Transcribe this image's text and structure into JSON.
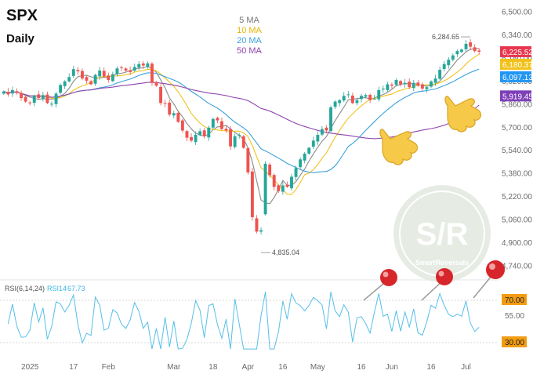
{
  "chart_data": {
    "type": "candlestick",
    "title": "SPX",
    "subtitle": "Daily",
    "price_axis": {
      "ylim": [
        4700,
        6540
      ],
      "ticks": [
        "6,500.00",
        "6,340.00",
        "6,180.00",
        "6,020.00",
        "5,860.00",
        "5,700.00",
        "5,540.00",
        "5,380.00",
        "5,220.00",
        "5,060.00",
        "4,900.00",
        "4,740.00"
      ],
      "tick_values": [
        6500,
        6340,
        6180,
        6020,
        5860,
        5700,
        5540,
        5380,
        5220,
        5060,
        4900,
        4740
      ]
    },
    "time_axis": {
      "labels": [
        "2025",
        "17",
        "Feb",
        "Mar",
        "18",
        "Apr",
        "16",
        "May",
        "16",
        "Jun",
        "16",
        "Jul"
      ],
      "label_bar_index": [
        6,
        16,
        24,
        39,
        48,
        56,
        64,
        72,
        82,
        89,
        98,
        106
      ]
    },
    "legend": [
      {
        "name": "5 MA",
        "color": "#777777"
      },
      {
        "name": "10 MA",
        "color": "#f2c21b"
      },
      {
        "name": "20 MA",
        "color": "#3aa0dc"
      },
      {
        "name": "50 MA",
        "color": "#8e44ad"
      }
    ],
    "annotations": {
      "high": {
        "text": "6,284.65",
        "value": 6284.65,
        "bar": 107
      },
      "low": {
        "text": "4,835.04",
        "value": 4835.04,
        "bar": 59
      }
    },
    "price_labels": [
      {
        "text": "6,225.52",
        "value": 6225.52,
        "color": "#e8364f"
      },
      {
        "text": "6,180.37",
        "value": 6180.37,
        "color": "#f2c21b"
      },
      {
        "text": "6,097.13",
        "value": 6097.13,
        "color": "#2196f3"
      },
      {
        "text": "5,919.45",
        "value": 5919.45,
        "color": "#7e3fb8"
      }
    ],
    "closes": [
      5950,
      5930,
      5960,
      5940,
      5905,
      5880,
      5870,
      5920,
      5905,
      5925,
      5870,
      5865,
      5935,
      5995,
      6020,
      6050,
      6105,
      6090,
      6040,
      6025,
      6000,
      6065,
      6095,
      6055,
      6030,
      6070,
      6110,
      6115,
      6095,
      6085,
      6120,
      6140,
      6130,
      6145,
      6010,
      5990,
      5870,
      5865,
      5790,
      5800,
      5740,
      5680,
      5630,
      5610,
      5650,
      5675,
      5640,
      5700,
      5760,
      5750,
      5690,
      5680,
      5570,
      5640,
      5650,
      5560,
      5390,
      5080,
      4980,
      4990,
      5450,
      5370,
      5290,
      5260,
      5300,
      5290,
      5360,
      5420,
      5480,
      5520,
      5560,
      5610,
      5650,
      5690,
      5680,
      5840,
      5880,
      5890,
      5920,
      5930,
      5870,
      5890,
      5920,
      5925,
      5890,
      5900,
      5960,
      5970,
      6000,
      5990,
      6030,
      6000,
      6010,
      5980,
      6010,
      5990,
      5970,
      5980,
      6020,
      6040,
      6100,
      6140,
      6170,
      6200,
      6230,
      6240,
      6280,
      6260,
      6230,
      6225.52
    ],
    "rsi": {
      "label": "RSI(6,14,24)",
      "series_label": "RSI14",
      "value": "67.73",
      "levels": [
        "70.00",
        "55.00",
        "30.00"
      ],
      "level_values": [
        70,
        55,
        30
      ]
    },
    "watermark": {
      "big": "S/R",
      "small": "SmartReversals"
    }
  }
}
